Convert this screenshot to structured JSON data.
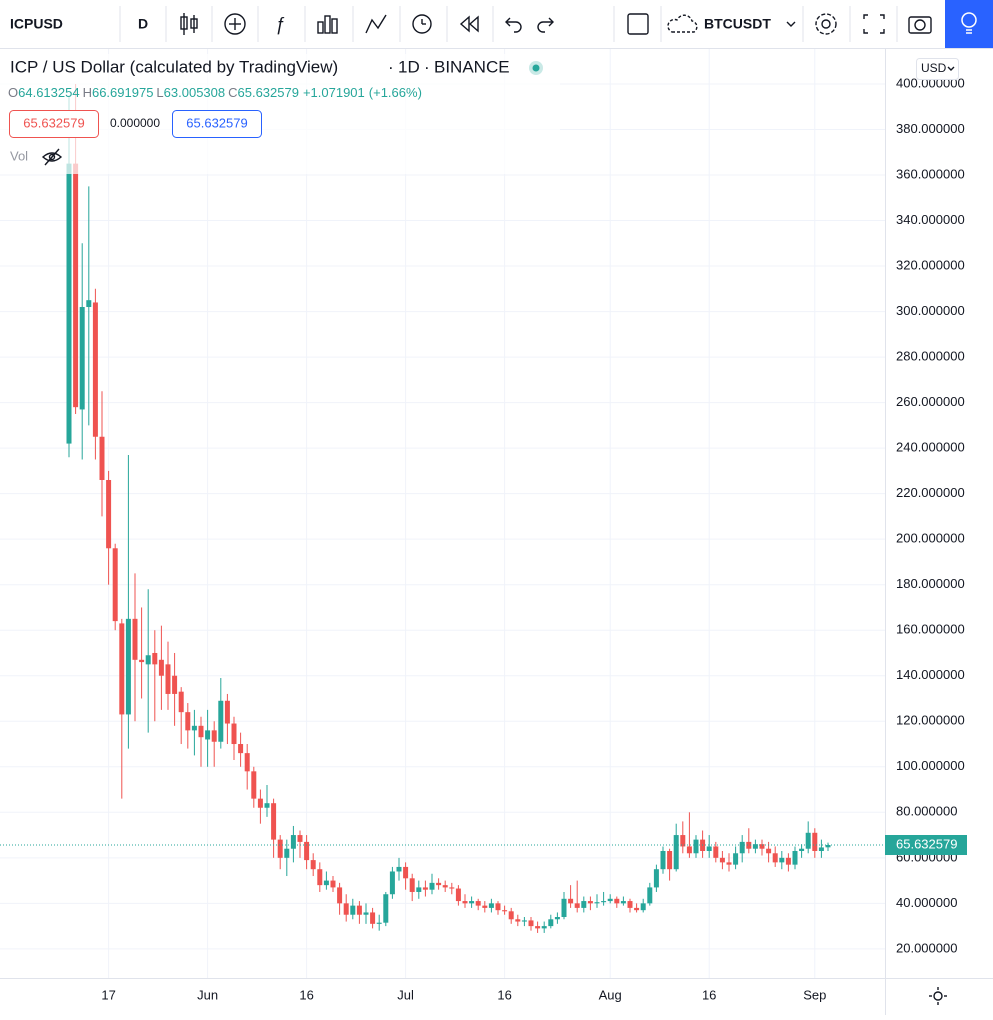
{
  "toolbar": {
    "symbol": "ICPUSD",
    "interval": "D",
    "compare_symbol": "BTCUSDT"
  },
  "header": {
    "title": "ICP / US Dollar (calculated by TradingView)",
    "interval": "1D",
    "exchange": "BINANCE",
    "ohlc_labels": [
      "O",
      "H",
      "L",
      "C"
    ],
    "change": "+1.071901",
    "change_percent": "(+1.66%)",
    "price_boxes": [
      "65.632579",
      "0.000000",
      "65.632579"
    ],
    "vol_label": "Vol",
    "currency": "USD"
  },
  "chart_data": {
    "type": "candlestick",
    "up_color": "#26a69a",
    "down_color": "#ef5350",
    "grid": true,
    "categories": [
      null,
      null,
      null,
      null,
      null,
      null,
      "17",
      null,
      null,
      null,
      null,
      null,
      null,
      null,
      null,
      null,
      null,
      null,
      null,
      null,
      null,
      "Jun",
      null,
      null,
      null,
      null,
      null,
      null,
      null,
      null,
      null,
      null,
      null,
      null,
      null,
      null,
      "16",
      null,
      null,
      null,
      null,
      null,
      null,
      null,
      null,
      null,
      null,
      null,
      null,
      null,
      null,
      "Jul",
      null,
      null,
      null,
      null,
      null,
      null,
      null,
      null,
      null,
      null,
      null,
      null,
      null,
      null,
      "16",
      null,
      null,
      null,
      null,
      null,
      null,
      null,
      null,
      null,
      null,
      null,
      null,
      null,
      null,
      null,
      "Aug",
      null,
      null,
      null,
      null,
      null,
      null,
      null,
      null,
      null,
      null,
      null,
      null,
      null,
      null,
      "16",
      null,
      null,
      null,
      null,
      null,
      null,
      null,
      null,
      null,
      null,
      null,
      null,
      null,
      null,
      null,
      "Sep",
      null,
      null
    ],
    "open": [
      242,
      365,
      257,
      302,
      304,
      245,
      226,
      196,
      163,
      123,
      165,
      147,
      145,
      150,
      147,
      145,
      140,
      133,
      124,
      116,
      118,
      112,
      116,
      111,
      129,
      119,
      110,
      106,
      98,
      86,
      82,
      84,
      68,
      60,
      64,
      70,
      67,
      59,
      55,
      48,
      50,
      47,
      40,
      35,
      39,
      35,
      36,
      31,
      31.5,
      44,
      54,
      56,
      51,
      45,
      47,
      46,
      49,
      48,
      47,
      46.5,
      41,
      40,
      41,
      39,
      38,
      40,
      37,
      36.5,
      33,
      32,
      32.5,
      30,
      29,
      30,
      33,
      34,
      42,
      40,
      38,
      41,
      40,
      40.5,
      41,
      42,
      40,
      41,
      38,
      37,
      40,
      47,
      55,
      63,
      55,
      70,
      65,
      62,
      68,
      63,
      65,
      60,
      58,
      57,
      62,
      67,
      64,
      66,
      64,
      62,
      58,
      60,
      57,
      63,
      64,
      71,
      63,
      64.613254
    ],
    "high": [
      395,
      400,
      330,
      355,
      310,
      265,
      230,
      198,
      165,
      237,
      185,
      170,
      178,
      160,
      162,
      155,
      150,
      135,
      128,
      125,
      122,
      125,
      120,
      139,
      132,
      122,
      115,
      110,
      100,
      90,
      92,
      86,
      70,
      68,
      74,
      72,
      70,
      62,
      58,
      54,
      52,
      49,
      44,
      42,
      41,
      40,
      38,
      35,
      45,
      56,
      60,
      58,
      53,
      50,
      50,
      53,
      51,
      50,
      49,
      48,
      44,
      43,
      42,
      41,
      42,
      41,
      39,
      38,
      35,
      34,
      34,
      32,
      32,
      35,
      36,
      45,
      48,
      50,
      43,
      43,
      44,
      45,
      44,
      43,
      43,
      42,
      40,
      42,
      49,
      57,
      65,
      64,
      75,
      76,
      80,
      70,
      72,
      70,
      67,
      63,
      62,
      65,
      70,
      73,
      68,
      68,
      67,
      65,
      63,
      62,
      65,
      66,
      76,
      73,
      68,
      66.691975
    ],
    "low": [
      236,
      255,
      235,
      250,
      235,
      210,
      180,
      160,
      86,
      108,
      120,
      130,
      115,
      120,
      125,
      125,
      118,
      110,
      108,
      105,
      100,
      100,
      100,
      108,
      110,
      103,
      100,
      90,
      82,
      75,
      78,
      60,
      55,
      52,
      58,
      60,
      55,
      52,
      45,
      46,
      45,
      35,
      32,
      33,
      31,
      31,
      29,
      28,
      30,
      42,
      50,
      46,
      41,
      42,
      43,
      44,
      46,
      45,
      44,
      39,
      38,
      38,
      37,
      36,
      36,
      35,
      35,
      31,
      30,
      30,
      28,
      27,
      27,
      29,
      31,
      33,
      38,
      36,
      36,
      37,
      38,
      39,
      40,
      38,
      39,
      36,
      36,
      36,
      39,
      45,
      53,
      50,
      54,
      62,
      60,
      60,
      60,
      60,
      58,
      55,
      54,
      55,
      58,
      62,
      62,
      61,
      58,
      56,
      55,
      54,
      55,
      60,
      62,
      60,
      60,
      63.005308
    ],
    "close": [
      365,
      258,
      302,
      305,
      245,
      226,
      196,
      164,
      123,
      165,
      147,
      146,
      149,
      145,
      140,
      132,
      132,
      124,
      116,
      118,
      113,
      116,
      111,
      129,
      119,
      110,
      106,
      98,
      86,
      82,
      84,
      68,
      60,
      64,
      70,
      67,
      59,
      55,
      48,
      50,
      47,
      40,
      35,
      39,
      35,
      36,
      31,
      31.5,
      44,
      54,
      56,
      51,
      45,
      47,
      46,
      49,
      48,
      47,
      46.5,
      41,
      40,
      41,
      39,
      38,
      40,
      37,
      36.5,
      33,
      32,
      32.5,
      30,
      29,
      30,
      33,
      34,
      42,
      40,
      38,
      41,
      40,
      40.5,
      41,
      42,
      40,
      41,
      38,
      37,
      40,
      47,
      55,
      63,
      55,
      70,
      65,
      62,
      68,
      63,
      65,
      60,
      58,
      57,
      62,
      67,
      64,
      66,
      64,
      62,
      58,
      60,
      57,
      63,
      64,
      71,
      63,
      64.560678,
      65.632579
    ],
    "ylim": [
      7.2,
      415.8
    ],
    "yticks": [
      {
        "value": 20,
        "label": "20.000000"
      },
      {
        "value": 40,
        "label": "40.000000"
      },
      {
        "value": 60,
        "label": "60.000000"
      },
      {
        "value": 80,
        "label": "80.000000"
      },
      {
        "value": 100,
        "label": "100.000000"
      },
      {
        "value": 120,
        "label": "120.000000"
      },
      {
        "value": 140,
        "label": "140.000000"
      },
      {
        "value": 160,
        "label": "160.000000"
      },
      {
        "value": 180,
        "label": "180.000000"
      },
      {
        "value": 200,
        "label": "200.000000"
      },
      {
        "value": 220,
        "label": "220.000000"
      },
      {
        "value": 240,
        "label": "240.000000"
      },
      {
        "value": 260,
        "label": "260.000000"
      },
      {
        "value": 280,
        "label": "280.000000"
      },
      {
        "value": 300,
        "label": "300.000000"
      },
      {
        "value": 320,
        "label": "320.000000"
      },
      {
        "value": 340,
        "label": "340.000000"
      },
      {
        "value": 360,
        "label": "360.000000"
      },
      {
        "value": 380,
        "label": "380.000000"
      },
      {
        "value": 400,
        "label": "400.000000"
      }
    ]
  }
}
